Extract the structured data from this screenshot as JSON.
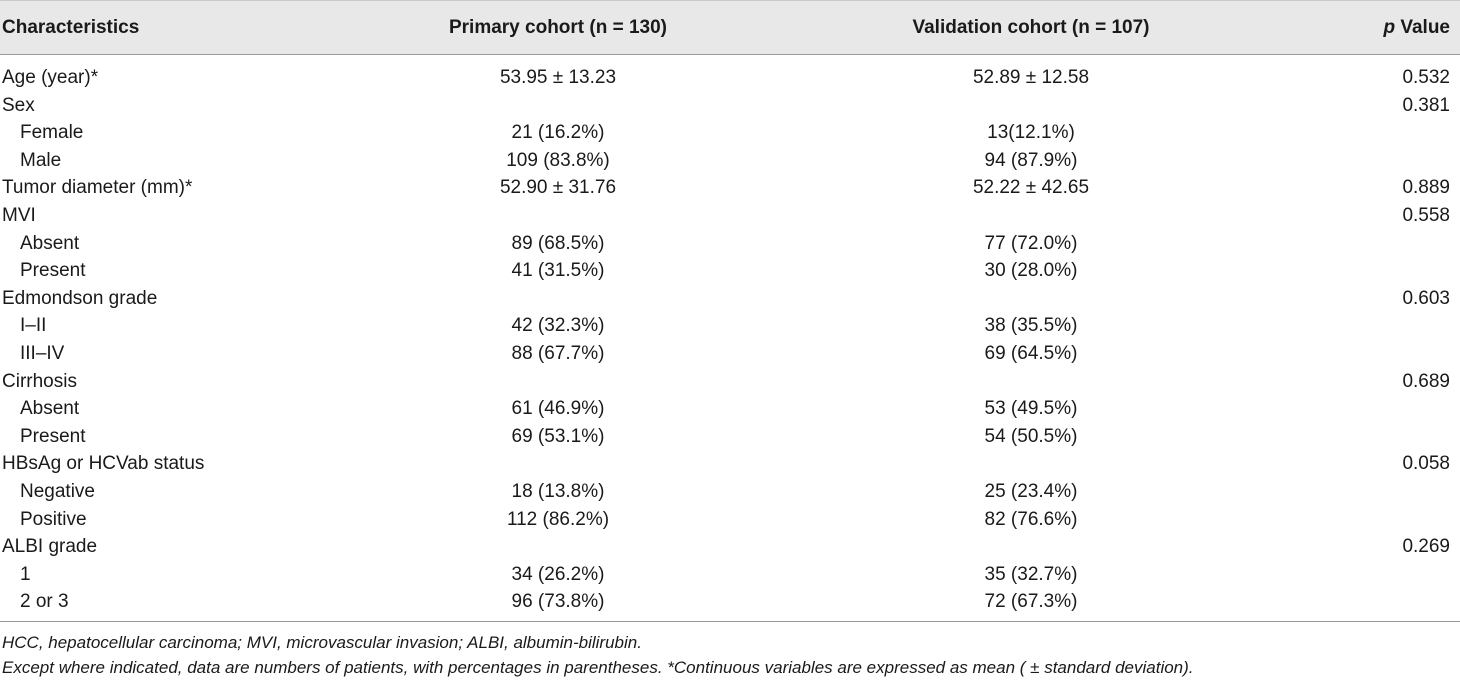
{
  "table": {
    "headers": {
      "characteristics": "Characteristics",
      "primary": "Primary cohort (n = 130)",
      "validation": "Validation cohort (n = 107)",
      "p_value_italic": "p",
      "p_value_rest": " Value"
    },
    "rows": [
      {
        "label": "Age (year)*",
        "primary": "53.95 ± 13.23",
        "validation": "52.89 ± 12.58",
        "p": "0.532"
      },
      {
        "label": "Sex",
        "primary": "",
        "validation": "",
        "p": "0.381"
      },
      {
        "label": "Female",
        "primary": "21 (16.2%)",
        "validation": "13(12.1%)",
        "p": ""
      },
      {
        "label": "Male",
        "primary": "109 (83.8%)",
        "validation": "94 (87.9%)",
        "p": ""
      },
      {
        "label": "Tumor diameter (mm)*",
        "primary": "52.90 ± 31.76",
        "validation": "52.22 ± 42.65",
        "p": "0.889"
      },
      {
        "label": "MVI",
        "primary": "",
        "validation": "",
        "p": "0.558"
      },
      {
        "label": "Absent",
        "primary": "89 (68.5%)",
        "validation": "77 (72.0%)",
        "p": ""
      },
      {
        "label": "Present",
        "primary": "41 (31.5%)",
        "validation": "30 (28.0%)",
        "p": ""
      },
      {
        "label": "Edmondson grade",
        "primary": "",
        "validation": "",
        "p": "0.603"
      },
      {
        "label": "I–II",
        "primary": "42 (32.3%)",
        "validation": "38 (35.5%)",
        "p": ""
      },
      {
        "label": "III–IV",
        "primary": "88 (67.7%)",
        "validation": "69 (64.5%)",
        "p": ""
      },
      {
        "label": "Cirrhosis",
        "primary": "",
        "validation": "",
        "p": "0.689"
      },
      {
        "label": "Absent",
        "primary": "61 (46.9%)",
        "validation": "53 (49.5%)",
        "p": ""
      },
      {
        "label": "Present",
        "primary": "69 (53.1%)",
        "validation": "54 (50.5%)",
        "p": ""
      },
      {
        "label": "HBsAg or HCVab status",
        "primary": "",
        "validation": "",
        "p": "0.058"
      },
      {
        "label": "Negative",
        "primary": "18 (13.8%)",
        "validation": "25 (23.4%)",
        "p": ""
      },
      {
        "label": "Positive",
        "primary": "112 (86.2%)",
        "validation": "82 (76.6%)",
        "p": ""
      },
      {
        "label": "ALBI grade",
        "primary": "",
        "validation": "",
        "p": "0.269"
      },
      {
        "label": "1",
        "primary": "34 (26.2%)",
        "validation": "35 (32.7%)",
        "p": ""
      },
      {
        "label": "2 or 3",
        "primary": "96 (73.8%)",
        "validation": "72 (67.3%)",
        "p": ""
      }
    ]
  },
  "footnotes": {
    "line1": "HCC, hepatocellular carcinoma; MVI, microvascular invasion; ALBI, albumin-bilirubin.",
    "line2": "Except where indicated, data are numbers of patients, with percentages in parentheses. *Continuous variables are expressed as mean ( ± standard deviation)."
  }
}
